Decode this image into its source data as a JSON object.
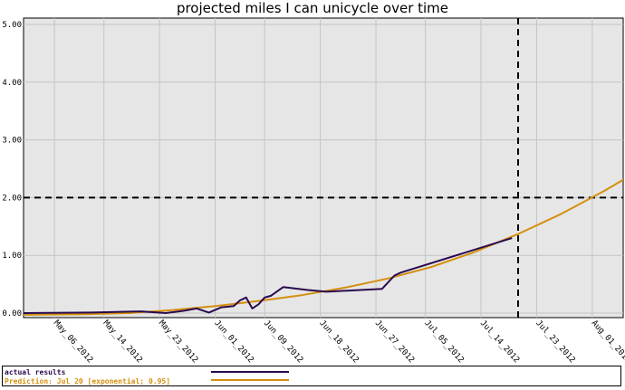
{
  "chart_data": {
    "type": "line",
    "title": "projected miles I can unicycle over time",
    "xlabel": "",
    "ylabel": "",
    "ylim": [
      0,
      5
    ],
    "xlim": [
      "2012-05-01",
      "2012-08-06"
    ],
    "grid": true,
    "legend_position": "bottom",
    "y_ticks": [
      "0.00",
      "1.00",
      "2.00",
      "3.00",
      "4.00",
      "5.00"
    ],
    "x_ticks": [
      "May_06_2012",
      "May_14_2012",
      "May_23_2012",
      "Jun_01_2012",
      "Jun_09_2012",
      "Jun_18_2012",
      "Jun_27_2012",
      "Jul_05_2012",
      "Jul_14_2012",
      "Jul_23_2012",
      "Aug_01_2012"
    ],
    "x_tick_dates": [
      "2012-05-06",
      "2012-05-14",
      "2012-05-23",
      "2012-06-01",
      "2012-06-09",
      "2012-06-18",
      "2012-06-27",
      "2012-07-05",
      "2012-07-14",
      "2012-07-23",
      "2012-08-01"
    ],
    "reference_lines": {
      "horizontal_y": 2.0,
      "vertical_date": "2012-07-20"
    },
    "series": [
      {
        "name": "actual results",
        "color": "#2a0a4e",
        "points": [
          [
            "2012-05-01",
            0.0
          ],
          [
            "2012-05-12",
            0.01
          ],
          [
            "2012-05-20",
            0.03
          ],
          [
            "2012-05-24",
            0.0
          ],
          [
            "2012-05-27",
            0.04
          ],
          [
            "2012-05-29",
            0.08
          ],
          [
            "2012-05-31",
            0.01
          ],
          [
            "2012-06-02",
            0.1
          ],
          [
            "2012-06-04",
            0.12
          ],
          [
            "2012-06-05",
            0.22
          ],
          [
            "2012-06-06",
            0.27
          ],
          [
            "2012-06-07",
            0.08
          ],
          [
            "2012-06-08",
            0.15
          ],
          [
            "2012-06-09",
            0.27
          ],
          [
            "2012-06-10",
            0.3
          ],
          [
            "2012-06-12",
            0.45
          ],
          [
            "2012-06-16",
            0.4
          ],
          [
            "2012-06-19",
            0.37
          ],
          [
            "2012-06-28",
            0.42
          ],
          [
            "2012-06-30",
            0.65
          ],
          [
            "2012-07-01",
            0.7
          ],
          [
            "2012-07-19",
            1.3
          ]
        ]
      },
      {
        "name": "Prediction: Jul 20 [exponential; 0.95]",
        "color": "#d4900e",
        "points": [
          [
            "2012-05-01",
            -0.03
          ],
          [
            "2012-05-11",
            -0.02
          ],
          [
            "2012-05-18",
            0.0
          ],
          [
            "2012-05-25",
            0.05
          ],
          [
            "2012-06-01",
            0.12
          ],
          [
            "2012-06-08",
            0.21
          ],
          [
            "2012-06-15",
            0.31
          ],
          [
            "2012-06-22",
            0.44
          ],
          [
            "2012-06-29",
            0.6
          ],
          [
            "2012-07-06",
            0.8
          ],
          [
            "2012-07-13",
            1.06
          ],
          [
            "2012-07-20",
            1.37
          ],
          [
            "2012-07-27",
            1.72
          ],
          [
            "2012-08-03",
            2.12
          ],
          [
            "2012-08-10",
            2.56
          ]
        ]
      }
    ]
  }
}
